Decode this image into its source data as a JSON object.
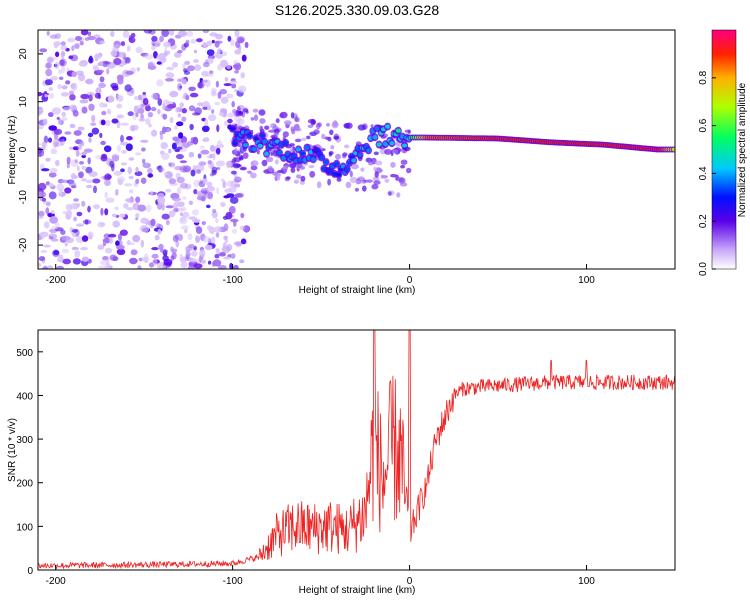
{
  "title": "S126.2025.330.09.03.G28",
  "colors": {
    "snr_line": "#ee2222",
    "frame": "#000000"
  },
  "chart_data": [
    {
      "type": "heatmap",
      "xlabel": "Height of straight line (km)",
      "ylabel": "Frequency (Hz)",
      "xlim": [
        -210,
        150
      ],
      "ylim": [
        -25,
        25
      ],
      "xticks": [
        -200,
        -100,
        0,
        100
      ],
      "yticks": [
        -20,
        -10,
        0,
        10,
        20
      ],
      "xtick_labels": [
        "-200",
        "-100",
        "0",
        "100"
      ],
      "ytick_labels": [
        "-20",
        "-10",
        "0",
        "10",
        "20"
      ],
      "colorbar": {
        "label": "Normalized spectral amplitude",
        "range": [
          0,
          1
        ],
        "ticks": [
          0.0,
          0.2,
          0.4,
          0.6,
          0.8
        ],
        "tick_labels": [
          "0.0",
          "0.2",
          "0.4",
          "0.6",
          "0.8"
        ]
      },
      "ridge": {
        "description_points": [
          {
            "x": -100,
            "y": 3,
            "amp": 0.35
          },
          {
            "x": -80,
            "y": 1,
            "amp": 0.4
          },
          {
            "x": -60,
            "y": -1,
            "amp": 0.4
          },
          {
            "x": -40,
            "y": -4,
            "amp": 0.35
          },
          {
            "x": -30,
            "y": -1,
            "amp": 0.4
          },
          {
            "x": -20,
            "y": 3,
            "amp": 0.45
          },
          {
            "x": 0,
            "y": 2.5,
            "amp": 0.5
          },
          {
            "x": 10,
            "y": 2.5,
            "amp": 0.85
          },
          {
            "x": 50,
            "y": 2.3,
            "amp": 0.9
          },
          {
            "x": 80,
            "y": 1.5,
            "amp": 0.9
          },
          {
            "x": 110,
            "y": 1,
            "amp": 0.9
          },
          {
            "x": 140,
            "y": 0,
            "amp": 0.95
          },
          {
            "x": 150,
            "y": 0,
            "amp": 0.7
          }
        ]
      }
    },
    {
      "type": "line",
      "xlabel": "Height of straight line (km)",
      "ylabel": "SNR (10 * v/v)",
      "xlim": [
        -210,
        150
      ],
      "ylim": [
        0,
        550
      ],
      "xticks": [
        -200,
        -100,
        0,
        100
      ],
      "yticks": [
        0,
        100,
        200,
        300,
        400,
        500
      ],
      "xtick_labels": [
        "-200",
        "-100",
        "0",
        "100"
      ],
      "ytick_labels": [
        "0",
        "100",
        "200",
        "300",
        "400",
        "500"
      ],
      "series": [
        {
          "name": "SNR",
          "x": [
            -210,
            -150,
            -100,
            -85,
            -75,
            -65,
            -55,
            -45,
            -35,
            -25,
            -20,
            -15,
            -10,
            -5,
            0,
            5,
            10,
            15,
            20,
            25,
            30,
            40,
            60,
            80,
            100,
            120,
            150
          ],
          "y": [
            10,
            12,
            15,
            30,
            80,
            100,
            95,
            100,
            90,
            130,
            300,
            200,
            280,
            260,
            80,
            140,
            200,
            300,
            350,
            400,
            415,
            420,
            425,
            430,
            430,
            430,
            430
          ]
        }
      ],
      "spikes": [
        {
          "x": -20,
          "y": 550
        },
        {
          "x": 0,
          "y": 550
        },
        {
          "x": 80,
          "y": 480
        },
        {
          "x": 100,
          "y": 480
        }
      ]
    }
  ]
}
